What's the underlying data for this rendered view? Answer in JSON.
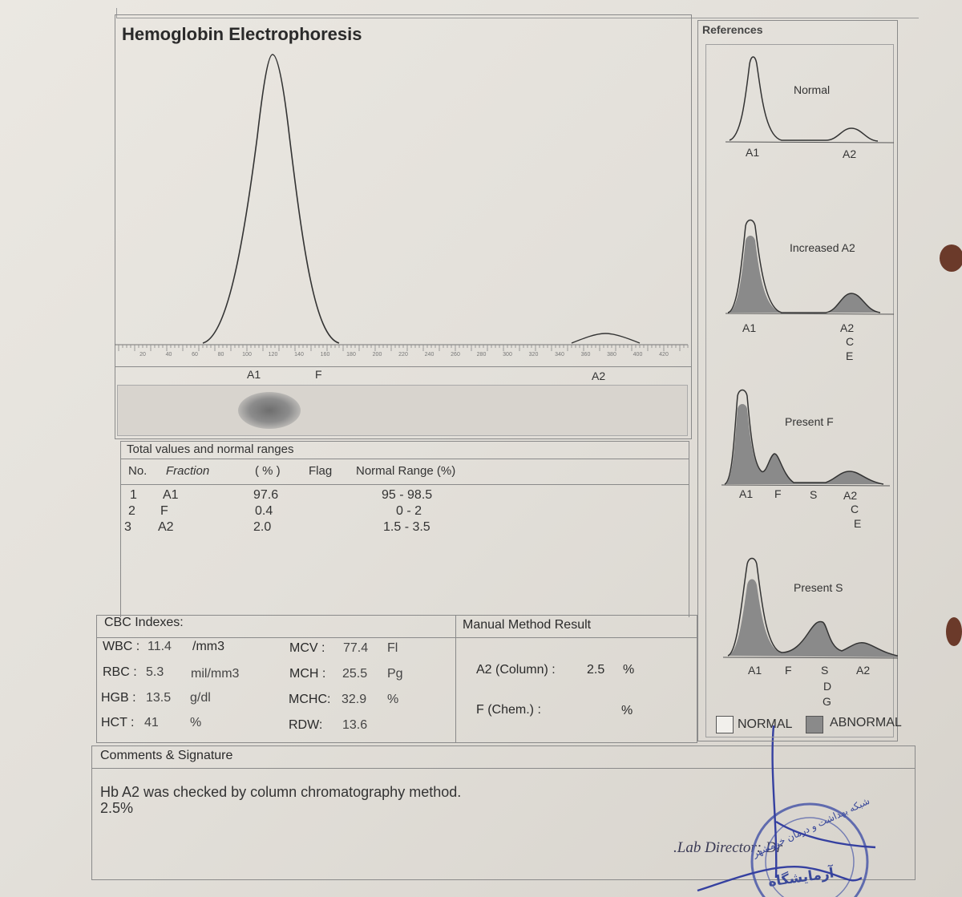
{
  "report": {
    "title": "Hemoglobin Electrophoresis",
    "axis_ticks": [
      "20",
      "40",
      "60",
      "80",
      "100",
      "120",
      "140",
      "160",
      "180",
      "200",
      "220",
      "240",
      "260",
      "280",
      "300",
      "320",
      "340",
      "360",
      "380",
      "400",
      "420"
    ],
    "peak_labels": [
      "A1",
      "F",
      "A2"
    ]
  },
  "totals": {
    "heading": "Total values and normal ranges",
    "headers": [
      "No.",
      "Fraction",
      "( % )",
      "Flag",
      "Normal Range (%)"
    ],
    "rows": [
      {
        "no": "1",
        "fraction": "A1",
        "percent": "97.6",
        "flag": "",
        "range": "95 - 98.5"
      },
      {
        "no": "2",
        "fraction": "F",
        "percent": "0.4",
        "flag": "",
        "range": "0 - 2"
      },
      {
        "no": "3",
        "fraction": "A2",
        "percent": "2.0",
        "flag": "",
        "range": "1.5 - 3.5"
      }
    ]
  },
  "cbc": {
    "heading": "CBC Indexes:",
    "wbc": {
      "label": "WBC :",
      "value": "11.4",
      "unit": "/mm3"
    },
    "rbc": {
      "label": "RBC :",
      "value": "5.3",
      "unit": "mil/mm3"
    },
    "hgb": {
      "label": "HGB :",
      "value": "13.5",
      "unit": "g/dl"
    },
    "hct": {
      "label": "HCT :",
      "value": "41",
      "unit": "%"
    },
    "mcv": {
      "label": "MCV :",
      "value": "77.4",
      "unit": "Fl"
    },
    "mch": {
      "label": "MCH :",
      "value": "25.5",
      "unit": "Pg"
    },
    "mchc": {
      "label": "MCHC:",
      "value": "32.9",
      "unit": "%"
    },
    "rdw": {
      "label": "RDW:",
      "value": "13.6",
      "unit": ""
    }
  },
  "manual": {
    "heading": "Manual Method Result",
    "a2_label": "A2 (Column) :",
    "a2_value": "2.5",
    "a2_unit": "%",
    "f_label": "F (Chem.) :",
    "f_value": "",
    "f_unit": "%"
  },
  "comments": {
    "heading": "Comments & Signature",
    "line1": "Hb A2 was checked by column chromatography method.",
    "line2": "2.5%",
    "director": ".Lab Director: Dr",
    "stamp_text": "آزمایشگاه",
    "stamp_ring": "شبکه بهداشت و درمان خرمشهر"
  },
  "references": {
    "heading": "References",
    "panels": [
      {
        "title": "Normal",
        "labels": [
          "A1",
          "A2"
        ]
      },
      {
        "title": "Increased A2",
        "labels": [
          "A1",
          "A2",
          "C",
          "E"
        ]
      },
      {
        "title": "Present F",
        "labels": [
          "A1",
          "F",
          "S",
          "A2",
          "C",
          "E"
        ]
      },
      {
        "title": "Present S",
        "labels": [
          "A1",
          "F",
          "S",
          "A2",
          "D",
          "G"
        ]
      }
    ],
    "legend_normal": "NORMAL",
    "legend_abnormal": "ABNORMAL"
  },
  "colors": {
    "abnormal_fill": "#8a8a8a",
    "line": "#333333",
    "hole": "#6b3a2a"
  }
}
